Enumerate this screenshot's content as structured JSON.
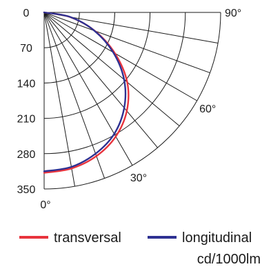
{
  "chart_data": {
    "type": "polar-curve",
    "r_ticks": [
      "0",
      "70",
      "140",
      "210",
      "280",
      "350"
    ],
    "r_max": 350,
    "angle_ticks": [
      "0°",
      "30°",
      "60°",
      "90°"
    ],
    "angle_range_deg": [
      0,
      90
    ],
    "grid_angle_step_deg": 10,
    "unit": "cd/1000lm",
    "legend_position": "bottom",
    "series": [
      {
        "name": "transversal",
        "color": "#e8343d",
        "points": [
          {
            "angle": 0,
            "value": 318
          },
          {
            "angle": 10,
            "value": 314
          },
          {
            "angle": 20,
            "value": 303
          },
          {
            "angle": 30,
            "value": 284
          },
          {
            "angle": 40,
            "value": 255
          },
          {
            "angle": 50,
            "value": 215
          },
          {
            "angle": 60,
            "value": 162
          },
          {
            "angle": 70,
            "value": 107
          },
          {
            "angle": 80,
            "value": 52
          },
          {
            "angle": 90,
            "value": 0
          }
        ]
      },
      {
        "name": "longitudinal",
        "color": "#2e3192",
        "points": [
          {
            "angle": 0,
            "value": 315
          },
          {
            "angle": 10,
            "value": 311
          },
          {
            "angle": 20,
            "value": 298
          },
          {
            "angle": 30,
            "value": 278
          },
          {
            "angle": 40,
            "value": 247
          },
          {
            "angle": 50,
            "value": 207
          },
          {
            "angle": 60,
            "value": 158
          },
          {
            "angle": 70,
            "value": 106
          },
          {
            "angle": 80,
            "value": 53
          },
          {
            "angle": 90,
            "value": 0
          }
        ]
      }
    ]
  }
}
